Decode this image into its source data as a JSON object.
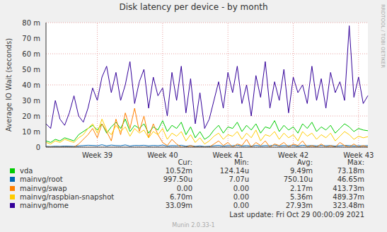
{
  "chart_data": {
    "type": "line",
    "title": "Disk latency per device - by month",
    "y_label": "Average IO Wait (seconds)",
    "watermark": "RRDTOOL / TOBI OETIKER",
    "last_update": "Last update: Fri Oct 29 00:00:09 2021",
    "credit": "Munin 2.0.33-1",
    "stats_columns": [
      "Cur:",
      "Min:",
      "Avg:",
      "Max:"
    ],
    "grid": true,
    "ylim": [
      0,
      0.08
    ],
    "yticks": [
      0,
      {
        "value": 0.01,
        "label": "10 m"
      },
      {
        "value": 0.02,
        "label": "20 m"
      },
      {
        "value": 0.03,
        "label": "30 m"
      },
      {
        "value": 0.04,
        "label": "40 m"
      },
      {
        "value": 0.05,
        "label": "50 m"
      },
      {
        "value": 0.06,
        "label": "60 m"
      },
      {
        "value": 0.07,
        "label": "70 m"
      },
      {
        "value": 0.08,
        "label": "80 m"
      }
    ],
    "categories": [
      null,
      null,
      null,
      null,
      null,
      null,
      null,
      null,
      null,
      null,
      null,
      "Week 39",
      null,
      null,
      null,
      null,
      null,
      null,
      null,
      null,
      null,
      null,
      null,
      null,
      null,
      "Week 40",
      null,
      null,
      null,
      null,
      null,
      null,
      null,
      null,
      null,
      null,
      null,
      null,
      null,
      "Week 41",
      null,
      null,
      null,
      null,
      null,
      null,
      null,
      null,
      null,
      null,
      null,
      null,
      null,
      "Week 42",
      null,
      null,
      null,
      null,
      null,
      null,
      null,
      null,
      null,
      null,
      null,
      null,
      null,
      "Week 43",
      null,
      null
    ],
    "series": [
      {
        "name": "vda",
        "color": "#00cc00",
        "values": [
          0.004,
          0.003,
          0.005,
          0.004,
          0.006,
          0.005,
          0.004,
          0.008,
          0.01,
          0.012,
          0.014,
          0.011,
          0.015,
          0.009,
          0.013,
          0.016,
          0.012,
          0.018,
          0.01,
          0.014,
          0.012,
          0.015,
          0.009,
          0.013,
          0.011,
          0.017,
          0.01,
          0.014,
          0.012,
          0.016,
          0.008,
          0.013,
          0.006,
          0.01,
          0.005,
          0.007,
          0.011,
          0.014,
          0.009,
          0.013,
          0.012,
          0.016,
          0.01,
          0.014,
          0.011,
          0.015,
          0.009,
          0.013,
          0.012,
          0.017,
          0.01,
          0.014,
          0.011,
          0.013,
          0.009,
          0.015,
          0.012,
          0.016,
          0.01,
          0.013,
          0.011,
          0.014,
          0.009,
          0.012,
          0.015,
          0.013,
          0.01,
          0.012,
          0.011,
          0.01052
        ],
        "stats": [
          {
            "value": 0.01052,
            "label": "10.52m"
          },
          {
            "value": 0.00012414,
            "label": "124.14u"
          },
          {
            "value": 0.00949,
            "label": "9.49m"
          },
          {
            "value": 0.07318,
            "label": "73.18m"
          }
        ]
      },
      {
        "name": "mainvg/root",
        "color": "#0066b3",
        "values": [
          0.0005,
          0.0004,
          0.0006,
          0.0005,
          0.0007,
          0.0006,
          0.0005,
          0.0008,
          0.001,
          0.0012,
          0.0011,
          0.0009,
          0.0015,
          0.0008,
          0.0013,
          0.001,
          0.0009,
          0.0014,
          0.0007,
          0.0011,
          0.001,
          0.0012,
          0.0008,
          0.0011,
          0.0009,
          0.0013,
          0.0007,
          0.001,
          0.0009,
          0.0012,
          0.0006,
          0.001,
          0.0005,
          0.0008,
          0.0004,
          0.0006,
          0.0009,
          0.0011,
          0.0007,
          0.001,
          0.0009,
          0.0012,
          0.0008,
          0.001,
          0.0007,
          0.0011,
          0.0008,
          0.001,
          0.0009,
          0.0013,
          0.0008,
          0.001,
          0.0009,
          0.0011,
          0.0007,
          0.0012,
          0.0009,
          0.001,
          0.0008,
          0.0011,
          0.0009,
          0.001,
          0.0007,
          0.0009,
          0.0011,
          0.001,
          0.0008,
          0.0009,
          0.0008,
          0.0009975
        ],
        "stats": [
          {
            "value": 0.0009975,
            "label": "997.50u"
          },
          {
            "value": 7.07e-06,
            "label": "7.07u"
          },
          {
            "value": 0.0007501,
            "label": "750.10u"
          },
          {
            "value": 0.04665,
            "label": "46.65m"
          }
        ]
      },
      {
        "name": "mainvg/swap",
        "color": "#ff8000",
        "values": [
          0,
          0,
          0,
          0,
          0,
          0,
          0,
          0.002,
          0.005,
          0.008,
          0.012,
          0.006,
          0.015,
          0.01,
          0.004,
          0.018,
          0.008,
          0.022,
          0.012,
          0.025,
          0.01,
          0.02,
          0.006,
          0.015,
          0.008,
          0.003,
          0.001,
          0.005,
          0.002,
          0,
          0,
          0.001,
          0,
          0,
          0,
          0,
          0.002,
          0.004,
          0.001,
          0.003,
          0,
          0.002,
          0.001,
          0.005,
          0,
          0.003,
          0.001,
          0.004,
          0,
          0.002,
          0.001,
          0.003,
          0,
          0.002,
          0.001,
          0.004,
          0,
          0.001,
          0,
          0.002,
          0,
          0.001,
          0,
          0.003,
          0.001,
          0,
          0.002,
          0,
          0.001,
          0
        ],
        "stats": [
          {
            "value": 0,
            "label": "0.00"
          },
          {
            "value": 0,
            "label": "0.00"
          },
          {
            "value": 0.00217,
            "label": "2.17m"
          },
          {
            "value": 0.41373,
            "label": "413.73m"
          }
        ]
      },
      {
        "name": "mainvg/raspbian-snapshot",
        "color": "#ffcc00",
        "values": [
          0.003,
          0.002,
          0.004,
          0.003,
          0.005,
          0.004,
          0.003,
          0.006,
          0.008,
          0.012,
          0.015,
          0.009,
          0.018,
          0.011,
          0.008,
          0.014,
          0.01,
          0.013,
          0.007,
          0.012,
          0.009,
          0.011,
          0.006,
          0.01,
          0.008,
          0.012,
          0.005,
          0.009,
          0.007,
          0.01,
          0.004,
          0.008,
          0.003,
          0.006,
          0.002,
          0.004,
          0.007,
          0.009,
          0.005,
          0.008,
          0.007,
          0.01,
          0.005,
          0.009,
          0.006,
          0.011,
          0.004,
          0.008,
          0.007,
          0.01,
          0.005,
          0.009,
          0.006,
          0.008,
          0.004,
          0.01,
          0.007,
          0.009,
          0.005,
          0.008,
          0.006,
          0.009,
          0.004,
          0.007,
          0.01,
          0.008,
          0.005,
          0.007,
          0.006,
          0.0067
        ],
        "stats": [
          {
            "value": 0.0067,
            "label": "6.70m"
          },
          {
            "value": 0,
            "label": "0.00"
          },
          {
            "value": 0.00536,
            "label": "5.36m"
          },
          {
            "value": 0.48937,
            "label": "489.37m"
          }
        ]
      },
      {
        "name": "mainvg/home",
        "color": "#330099",
        "values": [
          0.015,
          0.012,
          0.03,
          0.018,
          0.014,
          0.022,
          0.033,
          0.02,
          0.016,
          0.025,
          0.038,
          0.03,
          0.045,
          0.052,
          0.035,
          0.048,
          0.03,
          0.04,
          0.055,
          0.028,
          0.042,
          0.05,
          0.025,
          0.045,
          0.033,
          0.038,
          0.02,
          0.048,
          0.03,
          0.052,
          0.022,
          0.044,
          0.015,
          0.035,
          0.012,
          0.018,
          0.03,
          0.042,
          0.025,
          0.048,
          0.035,
          0.052,
          0.028,
          0.04,
          0.02,
          0.046,
          0.032,
          0.055,
          0.025,
          0.042,
          0.03,
          0.05,
          0.022,
          0.045,
          0.035,
          0.04,
          0.028,
          0.052,
          0.03,
          0.044,
          0.025,
          0.048,
          0.035,
          0.042,
          0.03,
          0.078,
          0.032,
          0.045,
          0.028,
          0.03309
        ],
        "stats": [
          {
            "value": 0.03309,
            "label": "33.09m"
          },
          {
            "value": 0,
            "label": "0.00"
          },
          {
            "value": 0.02793,
            "label": "27.93m"
          },
          {
            "value": 0.32348,
            "label": "323.48m"
          }
        ]
      }
    ]
  }
}
